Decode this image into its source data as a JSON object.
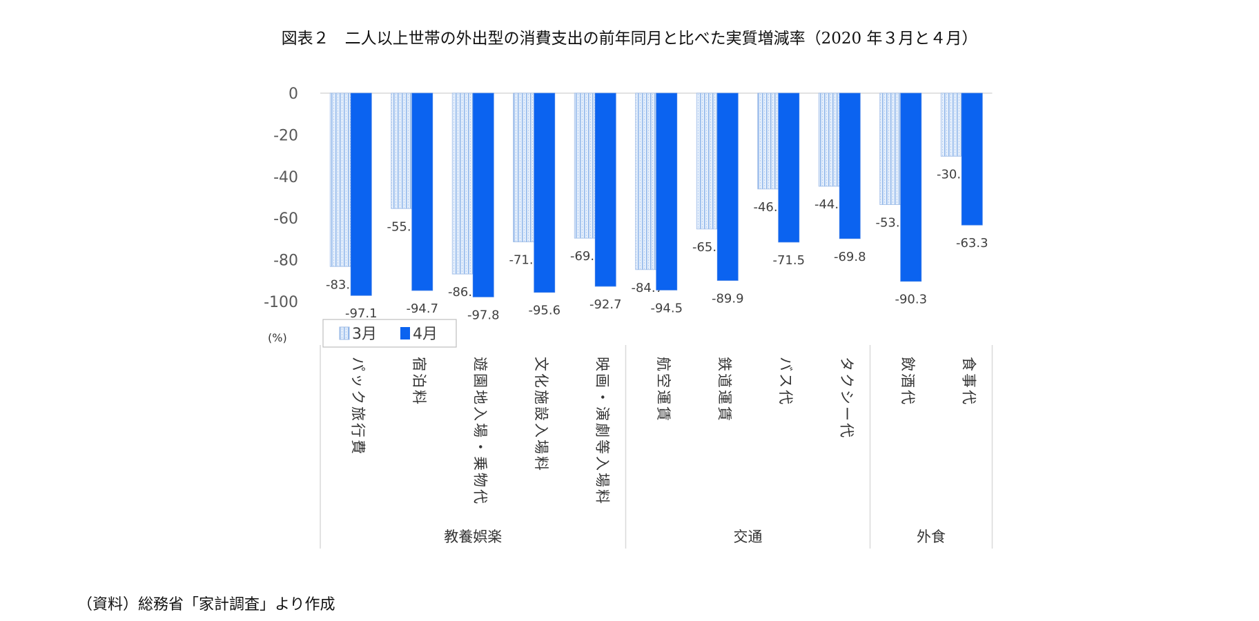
{
  "title": "図表２　二人以上世帯の外出型の消費支出の前年同月と比べた実質増減率（2020 年３月と４月）",
  "footer": "（資料）総務省「家計調査」より作成",
  "chart_data": {
    "type": "bar",
    "title": "図表２　二人以上世帯の外出型の消費支出の前年同月と比べた実質増減率（2020 年３月と４月）",
    "ylabel": "(%)",
    "ylim": [
      -100,
      0
    ],
    "yticks": [
      "0",
      "-20",
      "-40",
      "-60",
      "-80",
      "-100"
    ],
    "ytick_values": [
      0,
      -20,
      -40,
      -60,
      -80,
      -100
    ],
    "grid": false,
    "legend_placement": "bottom-left",
    "categories": [
      "パック旅行費",
      "宿泊料",
      "遊園地入場・乗物代",
      "文化施設入場料",
      "映画・演劇等入場料",
      "航空運賃",
      "鉄道運賃",
      "バス代",
      "タクシー代",
      "飲酒代",
      "食事代"
    ],
    "groups": [
      {
        "label": "教養娯楽",
        "count": 5
      },
      {
        "label": "交通",
        "count": 4
      },
      {
        "label": "外食",
        "count": 2
      }
    ],
    "series": [
      {
        "name": "3月",
        "color": "#a9c8ef",
        "pattern": "dotted-vertical",
        "values": [
          -83.2,
          -55.4,
          -86.8,
          -71.4,
          -69.6,
          -84.7,
          -65.2,
          -46.0,
          -44.7,
          -53.5,
          -30.3
        ],
        "labels": [
          "-83.2",
          "-55.4",
          "-86.8",
          "-71.4",
          "-69.6",
          "-84.7",
          "-65.2",
          "-46.0",
          "-44.7",
          "-53.5",
          "-30.3"
        ]
      },
      {
        "name": "4月",
        "color": "#0b63f0",
        "values": [
          -97.1,
          -94.7,
          -97.8,
          -95.6,
          -92.7,
          -94.5,
          -89.9,
          -71.5,
          -69.8,
          -90.3,
          -63.3
        ],
        "labels": [
          "-97.1",
          "-94.7",
          "-97.8",
          "-95.6",
          "-92.7",
          "-94.5",
          "-89.9",
          "-71.5",
          "-69.8",
          "-90.3",
          "-63.3"
        ]
      }
    ]
  }
}
